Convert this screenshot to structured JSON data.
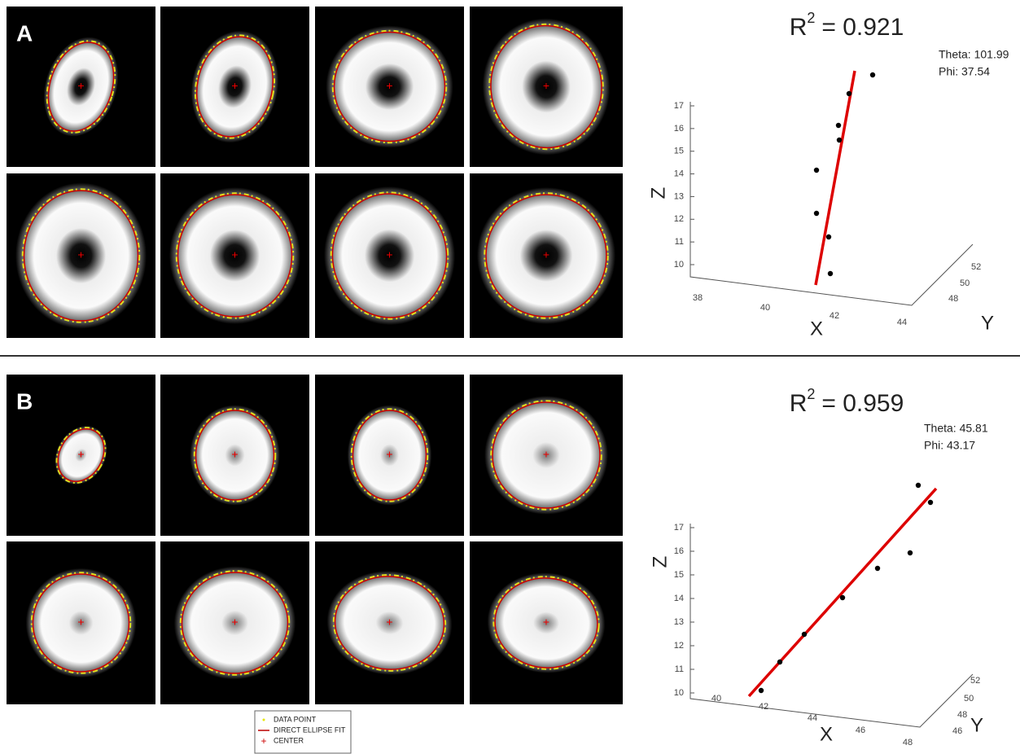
{
  "panels": [
    {
      "label": "A",
      "plot": {
        "title_base": "R",
        "title_exponent": "2",
        "title_rest": "= 0.921",
        "theta": "Theta: 101.99",
        "phi": "Phi: 37.54",
        "z_ticks": [
          "10",
          "11",
          "12",
          "13",
          "14",
          "15",
          "16",
          "17"
        ],
        "x_ticks": [
          "38",
          "40",
          "42",
          "44"
        ],
        "y_ticks": [
          "48",
          "50",
          "52"
        ],
        "x_label": "X",
        "y_label": "Y",
        "z_label": "Z"
      }
    },
    {
      "label": "B",
      "plot": {
        "title_base": "R",
        "title_exponent": "2",
        "title_rest": "= 0.959",
        "theta": "Theta: 45.81",
        "phi": "Phi: 43.17",
        "z_ticks": [
          "10",
          "11",
          "12",
          "13",
          "14",
          "15",
          "16",
          "17"
        ],
        "x_ticks": [
          "40",
          "42",
          "44",
          "46",
          "48"
        ],
        "y_ticks": [
          "46",
          "48",
          "50",
          "52"
        ],
        "x_label": "X",
        "y_label": "Y",
        "z_label": "Z"
      }
    }
  ],
  "legend": [
    "DATA POINT",
    "DIRECT ELLIPSE FIT",
    "CENTER"
  ]
}
